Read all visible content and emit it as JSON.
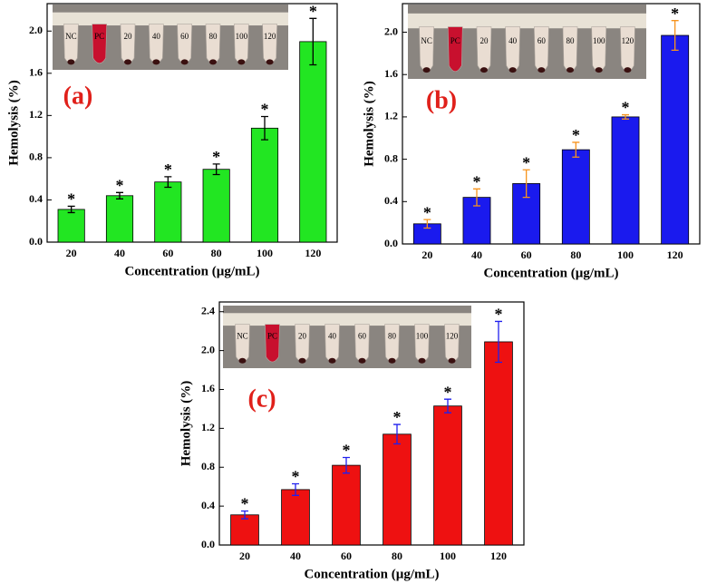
{
  "chart_data": [
    {
      "type": "bar",
      "panel_label": "(a)",
      "x_label": "Concentration (µg/mL)",
      "y_label": "Hemolysis (%)",
      "categories": [
        "20",
        "40",
        "60",
        "80",
        "100",
        "120"
      ],
      "values": [
        0.31,
        0.44,
        0.57,
        0.69,
        1.08,
        1.9
      ],
      "errors": [
        0.03,
        0.03,
        0.05,
        0.05,
        0.11,
        0.22
      ],
      "color": "#22e622",
      "error_color": "#000000",
      "significance_marker": "*",
      "inset_labels": [
        "NC",
        "PC",
        "20",
        "40",
        "60",
        "80",
        "100",
        "120"
      ],
      "ylim": [
        0,
        2.26
      ],
      "yticks": [
        {
          "value": 0,
          "label": "0.0"
        },
        {
          "value": 0.4,
          "label": "0.4"
        },
        {
          "value": 0.8,
          "label": "0.8"
        },
        {
          "value": 1.2,
          "label": "1.2"
        },
        {
          "value": 1.6,
          "label": "1.6"
        },
        {
          "value": 2.0,
          "label": "2.0"
        }
      ]
    },
    {
      "type": "bar",
      "panel_label": "(b)",
      "x_label": "Concentration (µg/mL)",
      "y_label": "Hemolysis (%)",
      "categories": [
        "20",
        "40",
        "60",
        "80",
        "100",
        "120"
      ],
      "values": [
        0.19,
        0.44,
        0.57,
        0.89,
        1.2,
        1.97
      ],
      "errors": [
        0.04,
        0.08,
        0.13,
        0.07,
        0.02,
        0.14
      ],
      "color": "#1a1aee",
      "error_color": "#f7941d",
      "significance_marker": "*",
      "inset_labels": [
        "NC",
        "PC",
        "20",
        "40",
        "60",
        "80",
        "100",
        "120"
      ],
      "ylim": [
        0,
        2.27
      ],
      "yticks": [
        {
          "value": 0,
          "label": "0.0"
        },
        {
          "value": 0.4,
          "label": "0.4"
        },
        {
          "value": 0.8,
          "label": "0.8"
        },
        {
          "value": 1.2,
          "label": "1.2"
        },
        {
          "value": 1.6,
          "label": "1.6"
        },
        {
          "value": 2.0,
          "label": "2.0"
        }
      ]
    },
    {
      "type": "bar",
      "panel_label": "(c)",
      "x_label": "Concentration (µg/mL)",
      "y_label": "Hemolysis (%)",
      "categories": [
        "20",
        "40",
        "60",
        "80",
        "100",
        "120"
      ],
      "values": [
        0.31,
        0.57,
        0.82,
        1.14,
        1.43,
        2.09
      ],
      "errors": [
        0.04,
        0.06,
        0.08,
        0.1,
        0.07,
        0.21
      ],
      "color": "#ee1111",
      "error_color": "#2020ee",
      "significance_marker": "*",
      "inset_labels": [
        "NC",
        "PC",
        "20",
        "40",
        "60",
        "80",
        "100",
        "120"
      ],
      "ylim": [
        0,
        2.5
      ],
      "yticks": [
        {
          "value": 0,
          "label": "0.0"
        },
        {
          "value": 0.4,
          "label": "0.4"
        },
        {
          "value": 0.8,
          "label": "0.8"
        },
        {
          "value": 1.2,
          "label": "1.2"
        },
        {
          "value": 1.6,
          "label": "1.6"
        },
        {
          "value": 2.0,
          "label": "2.0"
        },
        {
          "value": 2.4,
          "label": "2.4"
        }
      ]
    }
  ]
}
